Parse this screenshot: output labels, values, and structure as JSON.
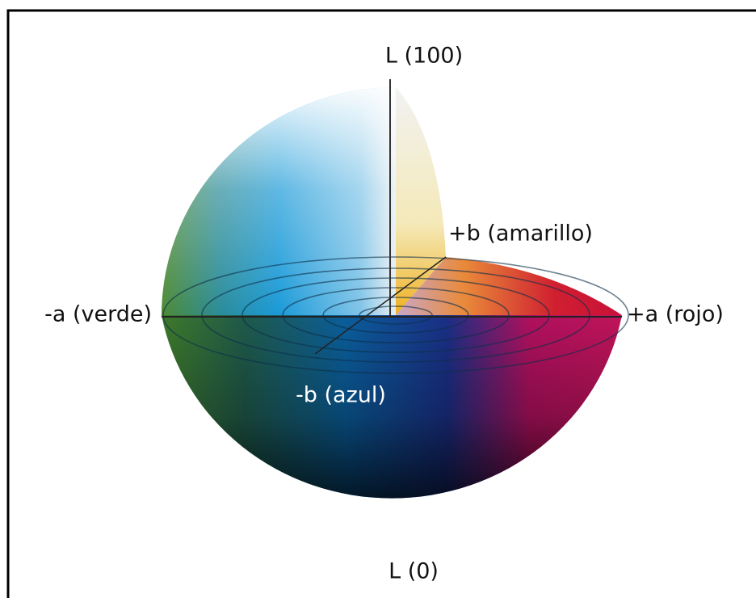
{
  "labels": {
    "l_top": "L (100)",
    "b_plus": "+b (amarillo)",
    "a_minus": "-a (verde)",
    "a_plus": "+a (rojo)",
    "b_minus": "-b (azul)",
    "l_bottom": "L (0)"
  }
}
